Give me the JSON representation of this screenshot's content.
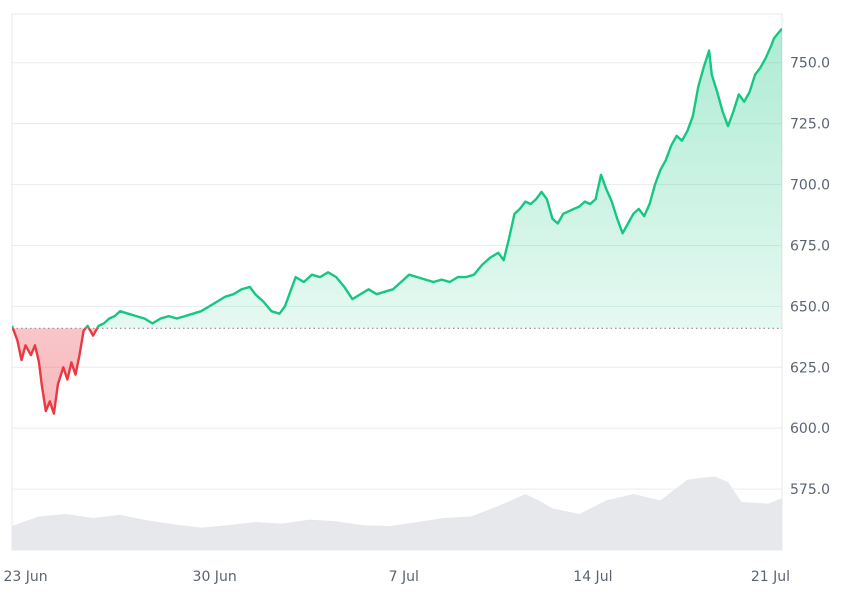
{
  "chart_data": {
    "type": "area",
    "baseline": 641,
    "ylim": [
      550,
      770
    ],
    "y_ticks": [
      575,
      600,
      625,
      650,
      675,
      700,
      725,
      750
    ],
    "y_tick_labels": [
      "575.0",
      "600.0",
      "625.0",
      "650.0",
      "675.0",
      "700.0",
      "725.0",
      "750.0"
    ],
    "x_ticks": [
      {
        "t": 0.5,
        "label": "23 Jun"
      },
      {
        "t": 7.5,
        "label": "30 Jun"
      },
      {
        "t": 14.5,
        "label": "7 Jul"
      },
      {
        "t": 21.5,
        "label": "14 Jul"
      },
      {
        "t": 28.5,
        "label": "21 Jul"
      }
    ],
    "x_range": [
      0,
      28.5
    ],
    "grid": true,
    "colors": {
      "up_line": "#16c784",
      "down_line": "#ea3943",
      "up_fill": "#16c784",
      "down_fill": "#ea3943",
      "baseline": "#8a8f98",
      "volume": "#e6e8ec"
    },
    "series": [
      {
        "values": [
          [
            0,
            642
          ],
          [
            0.2,
            636
          ],
          [
            0.35,
            628
          ],
          [
            0.5,
            634
          ],
          [
            0.7,
            630
          ],
          [
            0.85,
            634
          ],
          [
            1.0,
            627
          ],
          [
            1.1,
            618
          ],
          [
            1.25,
            607
          ],
          [
            1.4,
            611
          ],
          [
            1.55,
            606
          ],
          [
            1.7,
            618
          ],
          [
            1.9,
            625
          ],
          [
            2.05,
            620
          ],
          [
            2.2,
            627
          ],
          [
            2.35,
            622
          ],
          [
            2.5,
            630
          ],
          [
            2.65,
            640
          ],
          [
            2.8,
            642
          ],
          [
            3.0,
            638
          ],
          [
            3.2,
            642
          ],
          [
            3.4,
            643
          ],
          [
            3.6,
            645
          ],
          [
            3.8,
            646
          ],
          [
            4.0,
            648
          ],
          [
            4.3,
            647
          ],
          [
            4.6,
            646
          ],
          [
            4.9,
            645
          ],
          [
            5.2,
            643
          ],
          [
            5.5,
            645
          ],
          [
            5.8,
            646
          ],
          [
            6.1,
            645
          ],
          [
            6.4,
            646
          ],
          [
            6.7,
            647
          ],
          [
            7.0,
            648
          ],
          [
            7.3,
            650
          ],
          [
            7.6,
            652
          ],
          [
            7.9,
            654
          ],
          [
            8.2,
            655
          ],
          [
            8.5,
            657
          ],
          [
            8.8,
            658
          ],
          [
            9.0,
            655
          ],
          [
            9.3,
            652
          ],
          [
            9.6,
            648
          ],
          [
            9.9,
            647
          ],
          [
            10.1,
            650
          ],
          [
            10.3,
            656
          ],
          [
            10.5,
            662
          ],
          [
            10.8,
            660
          ],
          [
            11.1,
            663
          ],
          [
            11.4,
            662
          ],
          [
            11.7,
            664
          ],
          [
            12.0,
            662
          ],
          [
            12.3,
            658
          ],
          [
            12.6,
            653
          ],
          [
            12.9,
            655
          ],
          [
            13.2,
            657
          ],
          [
            13.5,
            655
          ],
          [
            13.8,
            656
          ],
          [
            14.1,
            657
          ],
          [
            14.4,
            660
          ],
          [
            14.7,
            663
          ],
          [
            15.0,
            662
          ],
          [
            15.3,
            661
          ],
          [
            15.6,
            660
          ],
          [
            15.9,
            661
          ],
          [
            16.2,
            660
          ],
          [
            16.5,
            662
          ],
          [
            16.8,
            662
          ],
          [
            17.1,
            663
          ],
          [
            17.4,
            667
          ],
          [
            17.7,
            670
          ],
          [
            18.0,
            672
          ],
          [
            18.2,
            669
          ],
          [
            18.4,
            678
          ],
          [
            18.6,
            688
          ],
          [
            18.8,
            690
          ],
          [
            19.0,
            693
          ],
          [
            19.2,
            692
          ],
          [
            19.4,
            694
          ],
          [
            19.6,
            697
          ],
          [
            19.8,
            694
          ],
          [
            20.0,
            686
          ],
          [
            20.2,
            684
          ],
          [
            20.4,
            688
          ],
          [
            20.6,
            689
          ],
          [
            20.8,
            690
          ],
          [
            21.0,
            691
          ],
          [
            21.2,
            693
          ],
          [
            21.4,
            692
          ],
          [
            21.6,
            694
          ],
          [
            21.8,
            704
          ],
          [
            22.0,
            698
          ],
          [
            22.2,
            693
          ],
          [
            22.4,
            686
          ],
          [
            22.6,
            680
          ],
          [
            22.8,
            684
          ],
          [
            23.0,
            688
          ],
          [
            23.2,
            690
          ],
          [
            23.4,
            687
          ],
          [
            23.6,
            692
          ],
          [
            23.8,
            700
          ],
          [
            24.0,
            706
          ],
          [
            24.2,
            710
          ],
          [
            24.4,
            716
          ],
          [
            24.6,
            720
          ],
          [
            24.8,
            718
          ],
          [
            25.0,
            722
          ],
          [
            25.2,
            728
          ],
          [
            25.4,
            740
          ],
          [
            25.6,
            748
          ],
          [
            25.8,
            755
          ],
          [
            25.9,
            745
          ],
          [
            26.1,
            738
          ],
          [
            26.3,
            730
          ],
          [
            26.5,
            724
          ],
          [
            26.7,
            730
          ],
          [
            26.9,
            737
          ],
          [
            27.1,
            734
          ],
          [
            27.3,
            738
          ],
          [
            27.5,
            745
          ],
          [
            27.7,
            748
          ],
          [
            27.9,
            752
          ],
          [
            28.1,
            757
          ],
          [
            28.2,
            760
          ],
          [
            28.35,
            762
          ],
          [
            28.5,
            764
          ]
        ]
      }
    ],
    "volume": [
      [
        0,
        0.3
      ],
      [
        1,
        0.42
      ],
      [
        2,
        0.45
      ],
      [
        3,
        0.4
      ],
      [
        4,
        0.44
      ],
      [
        5,
        0.37
      ],
      [
        6,
        0.32
      ],
      [
        7,
        0.28
      ],
      [
        8,
        0.31
      ],
      [
        9,
        0.35
      ],
      [
        10,
        0.33
      ],
      [
        11,
        0.38
      ],
      [
        12,
        0.36
      ],
      [
        13,
        0.31
      ],
      [
        14,
        0.3
      ],
      [
        15,
        0.35
      ],
      [
        16,
        0.4
      ],
      [
        17,
        0.42
      ],
      [
        18,
        0.55
      ],
      [
        19,
        0.7
      ],
      [
        19.5,
        0.62
      ],
      [
        20,
        0.52
      ],
      [
        21,
        0.45
      ],
      [
        22,
        0.62
      ],
      [
        23,
        0.7
      ],
      [
        24,
        0.62
      ],
      [
        25,
        0.88
      ],
      [
        26,
        0.92
      ],
      [
        26.5,
        0.85
      ],
      [
        27,
        0.6
      ],
      [
        28,
        0.58
      ],
      [
        28.5,
        0.65
      ]
    ]
  }
}
